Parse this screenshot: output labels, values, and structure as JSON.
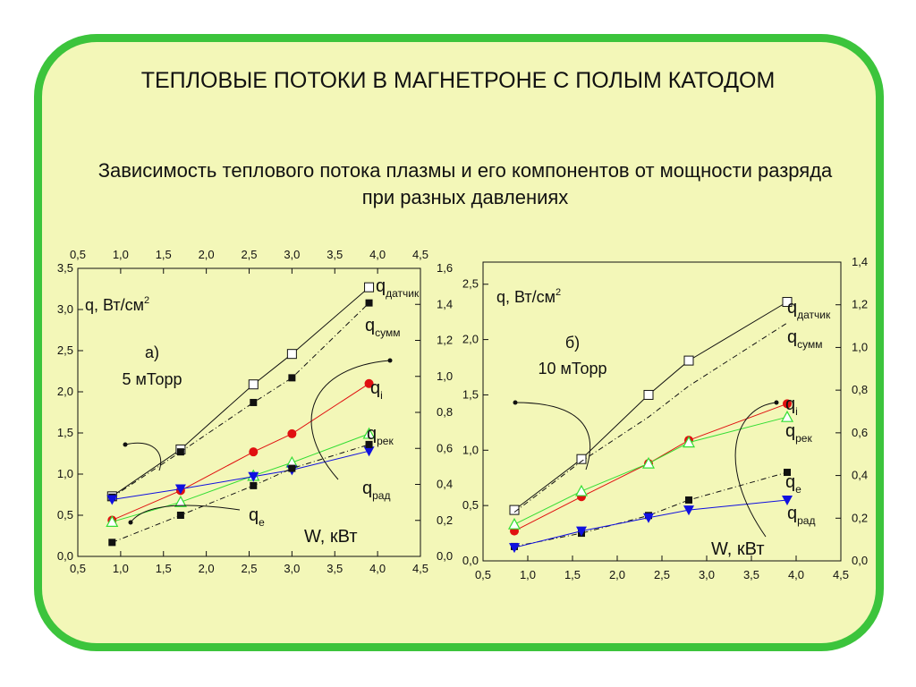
{
  "slide": {
    "title": "ТЕПЛОВЫЕ ПОТОКИ В МАГНЕТРОНЕ С ПОЛЫМ КАТОДОМ",
    "subtitle": "Зависимость теплового потока плазмы и его компонентов от мощности разряда при разных давлениях"
  },
  "colors": {
    "frame": "#3cc43c",
    "background": "#f3f7b8",
    "q_i": "#e01010",
    "q_rek": "#33dd33",
    "q_rad": "#1010e0",
    "q_e": "#111111"
  },
  "chart_data": [
    {
      "type": "line",
      "panel_label": "а)",
      "condition": "5 мТорр",
      "ylabel_main": "q, Вт/см",
      "ylabel_sup": "2",
      "xlabel": "W, кВт",
      "xlim": [
        0.5,
        4.5
      ],
      "ylim_left": [
        0.0,
        3.5
      ],
      "ylim_right": [
        0.0,
        1.6
      ],
      "xticks": [
        "0,5",
        "1,0",
        "1,5",
        "2,0",
        "2,5",
        "3,0",
        "3,5",
        "4,0",
        "4,5"
      ],
      "yticks_left": [
        "0,0",
        "0,5",
        "1,0",
        "1,5",
        "2,0",
        "2,5",
        "3,0",
        "3,5"
      ],
      "yticks_right": [
        "0,0",
        "0,2",
        "0,4",
        "0,6",
        "0,8",
        "1,0",
        "1,2",
        "1,4",
        "1,6"
      ],
      "x": [
        0.9,
        1.7,
        2.55,
        3.0,
        3.9
      ],
      "series": [
        {
          "name": "q",
          "sub": "датчик",
          "marker": "square-open",
          "color": "#111111",
          "line": "solid",
          "axis": "left",
          "values": [
            0.73,
            1.3,
            2.09,
            2.46,
            3.27
          ]
        },
        {
          "name": "q",
          "sub": "сумм",
          "marker": "square",
          "color": "#111111",
          "line": "dashdot",
          "axis": "left",
          "values": [
            0.72,
            1.27,
            1.87,
            2.17,
            3.08
          ]
        },
        {
          "name": "q",
          "sub": "i",
          "marker": "circle",
          "color": "#e01010",
          "line": "solid",
          "axis": "left",
          "values": [
            0.44,
            0.8,
            1.27,
            1.49,
            2.1
          ]
        },
        {
          "name": "q",
          "sub": "рек",
          "marker": "triangle-up-open",
          "color": "#33dd33",
          "line": "solid",
          "axis": "left",
          "values": [
            0.42,
            0.66,
            0.98,
            1.14,
            1.49
          ]
        },
        {
          "name": "q",
          "sub": "рад",
          "marker": "triangle-down",
          "color": "#1010e0",
          "line": "solid",
          "axis": "left",
          "values": [
            0.69,
            0.82,
            0.97,
            1.05,
            1.28
          ]
        },
        {
          "name": "q",
          "sub": "е",
          "marker": "square",
          "color": "#111111",
          "line": "dashdot",
          "axis": "left",
          "values": [
            0.17,
            0.5,
            0.86,
            1.07,
            1.36
          ]
        }
      ]
    },
    {
      "type": "line",
      "panel_label": "б)",
      "condition": "10 мТорр",
      "ylabel_main": "q, Вт/см",
      "ylabel_sup": "2",
      "xlabel": "W, кВт",
      "xlim": [
        0.5,
        4.5
      ],
      "ylim_left": [
        0.0,
        2.7
      ],
      "ylim_right": [
        0.0,
        1.4
      ],
      "xticks": [
        "0,5",
        "1,0",
        "1,5",
        "2,0",
        "2,5",
        "3,0",
        "3,5",
        "4,0",
        "4,5"
      ],
      "yticks_left": [
        "0,0",
        "0,5",
        "1,0",
        "1,5",
        "2,0",
        "2,5"
      ],
      "yticks_right": [
        "0,0",
        "0,2",
        "0,4",
        "0,6",
        "0,8",
        "1,0",
        "1,2",
        "1,4"
      ],
      "x": [
        0.85,
        1.6,
        2.35,
        2.8,
        3.9
      ],
      "series": [
        {
          "name": "q",
          "sub": "датчик",
          "marker": "square-open",
          "color": "#111111",
          "line": "solid",
          "axis": "left",
          "values": [
            0.46,
            0.92,
            1.5,
            1.81,
            2.34
          ]
        },
        {
          "name": "q",
          "sub": "сумм",
          "marker": "none",
          "color": "#111111",
          "line": "dashdot",
          "axis": "left",
          "values": [
            0.44,
            0.9,
            1.3,
            1.58,
            2.15
          ]
        },
        {
          "name": "q",
          "sub": "i",
          "marker": "circle",
          "color": "#e01010",
          "line": "solid",
          "axis": "left",
          "values": [
            0.27,
            0.58,
            0.88,
            1.09,
            1.42
          ]
        },
        {
          "name": "q",
          "sub": "рек",
          "marker": "triangle-up-open",
          "color": "#33dd33",
          "line": "solid",
          "axis": "left",
          "values": [
            0.33,
            0.63,
            0.88,
            1.07,
            1.3
          ]
        },
        {
          "name": "q",
          "sub": "е",
          "marker": "square",
          "color": "#111111",
          "line": "dashdot",
          "axis": "left",
          "values": [
            0.13,
            0.25,
            0.41,
            0.55,
            0.8
          ]
        },
        {
          "name": "q",
          "sub": "рад",
          "marker": "triangle-down",
          "color": "#1010e0",
          "line": "solid",
          "axis": "left",
          "values": [
            0.12,
            0.27,
            0.39,
            0.46,
            0.55
          ]
        }
      ]
    }
  ]
}
